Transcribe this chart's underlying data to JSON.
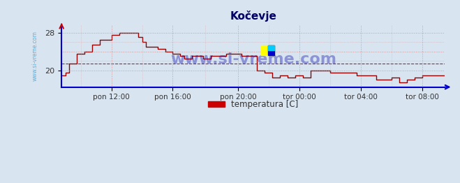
{
  "title": "Kočevje",
  "ylabel": "",
  "xlabel": "",
  "background_color": "#d8e4f0",
  "plot_bg_color": "#d8e4f0",
  "line_color": "#990000",
  "grid_color_major": "#aaaacc",
  "grid_color_minor": "#ccccee",
  "axis_color": "#0000cc",
  "watermark_text": "www.si-vreme.com",
  "legend_label": "temperatura [C]",
  "legend_color": "#cc0000",
  "ylim": [
    16,
    29.5
  ],
  "yticks": [
    20,
    28
  ],
  "mean_line_y": 21.5,
  "mean_line_color": "#cc0000",
  "title_color": "#000066",
  "title_fontsize": 11,
  "xtick_labels": [
    "pon 12:00",
    "pon 16:00",
    "pon 20:00",
    "tor 00:00",
    "tor 04:00",
    "tor 08:00"
  ],
  "xtick_positions": [
    0.13,
    0.29,
    0.46,
    0.62,
    0.78,
    0.94
  ],
  "sidewater_text": "www.si-vreme.com",
  "time_data": [
    0.0,
    0.01,
    0.02,
    0.03,
    0.04,
    0.05,
    0.06,
    0.07,
    0.08,
    0.09,
    0.1,
    0.11,
    0.12,
    0.13,
    0.14,
    0.15,
    0.16,
    0.17,
    0.18,
    0.19,
    0.2,
    0.21,
    0.22,
    0.23,
    0.24,
    0.25,
    0.26,
    0.27,
    0.28,
    0.29,
    0.3,
    0.31,
    0.32,
    0.33,
    0.34,
    0.35,
    0.36,
    0.37,
    0.38,
    0.39,
    0.4,
    0.41,
    0.42,
    0.43,
    0.44,
    0.45,
    0.46,
    0.47,
    0.48,
    0.49,
    0.5,
    0.51,
    0.52,
    0.53,
    0.54,
    0.55,
    0.56,
    0.57,
    0.58,
    0.59,
    0.6,
    0.61,
    0.62,
    0.63,
    0.64,
    0.65,
    0.66,
    0.67,
    0.68,
    0.69,
    0.7,
    0.71,
    0.72,
    0.73,
    0.74,
    0.75,
    0.76,
    0.77,
    0.78,
    0.79,
    0.8,
    0.81,
    0.82,
    0.83,
    0.84,
    0.85,
    0.86,
    0.87,
    0.88,
    0.89,
    0.9,
    0.91,
    0.92,
    0.93,
    0.94,
    0.95,
    0.96,
    0.97,
    0.98,
    1.0
  ],
  "temp_data": [
    19.0,
    19.5,
    21.5,
    21.5,
    23.5,
    23.5,
    24.0,
    24.0,
    25.5,
    25.5,
    26.5,
    26.5,
    26.5,
    27.5,
    27.5,
    28.0,
    28.0,
    28.0,
    28.0,
    28.0,
    27.0,
    26.0,
    25.0,
    25.0,
    25.0,
    24.5,
    24.5,
    24.0,
    24.0,
    23.5,
    23.5,
    23.0,
    22.5,
    22.5,
    23.0,
    23.0,
    23.0,
    22.5,
    22.5,
    23.0,
    23.0,
    23.0,
    23.0,
    23.5,
    23.5,
    23.5,
    23.5,
    23.0,
    23.0,
    23.0,
    23.0,
    20.0,
    20.0,
    19.5,
    19.5,
    18.5,
    18.5,
    19.0,
    19.0,
    18.5,
    18.5,
    19.0,
    19.0,
    18.5,
    18.5,
    20.0,
    20.0,
    20.0,
    20.0,
    20.0,
    19.5,
    19.5,
    19.5,
    19.5,
    19.5,
    19.5,
    19.5,
    19.0,
    19.0,
    19.0,
    19.0,
    19.0,
    18.0,
    18.0,
    18.0,
    18.0,
    18.5,
    18.5,
    17.5,
    17.5,
    18.0,
    18.0,
    18.5,
    18.5,
    19.0,
    19.0,
    19.0,
    19.0,
    19.0,
    19.0
  ]
}
